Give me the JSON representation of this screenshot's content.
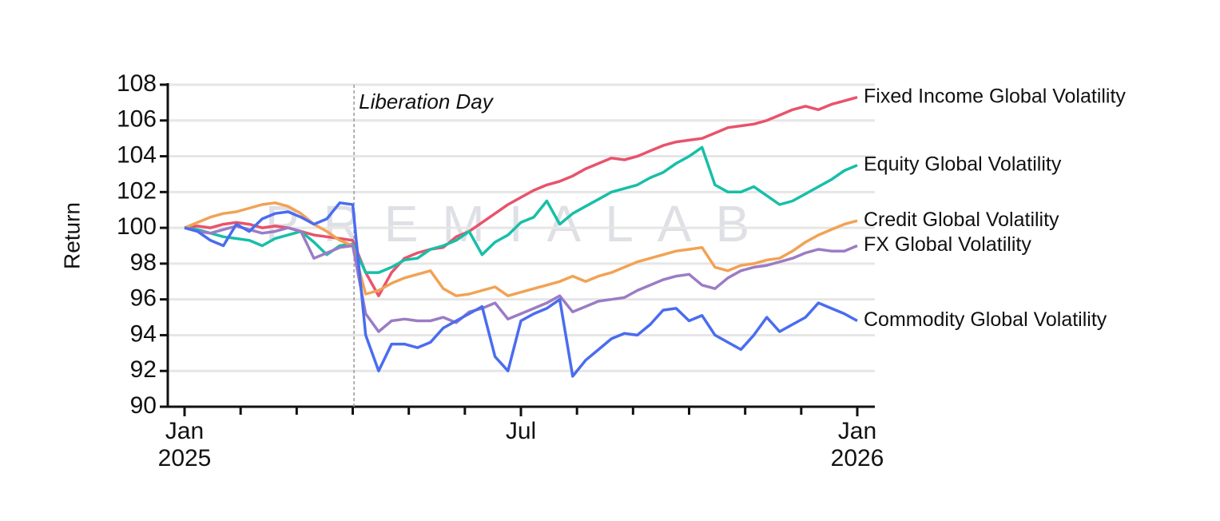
{
  "chart_data": {
    "type": "line",
    "y_label": "Return",
    "watermark": "PREMIALAB",
    "annotation": "Liberation Day",
    "categories": [
      "Jan 2025",
      null,
      null,
      null,
      null,
      null,
      null,
      null,
      null,
      null,
      null,
      null,
      null,
      null,
      null,
      null,
      null,
      null,
      null,
      null,
      null,
      null,
      null,
      null,
      null,
      null,
      "Jul",
      null,
      null,
      null,
      null,
      null,
      null,
      null,
      null,
      null,
      null,
      null,
      null,
      null,
      null,
      null,
      null,
      null,
      null,
      null,
      null,
      null,
      null,
      null,
      null,
      null,
      "Jan 2026"
    ],
    "ylim": [
      90,
      108
    ],
    "yticks": [
      90,
      92,
      94,
      96,
      98,
      100,
      102,
      104,
      106,
      108
    ],
    "grid": true,
    "series": [
      {
        "name": "Fixed Income Global Volatility",
        "color": "#e8536b",
        "values": [
          100,
          100.1,
          100,
          100.2,
          100.3,
          100.2,
          100,
          100.1,
          100,
          99.8,
          99.6,
          99.5,
          99.4,
          99.3,
          97.5,
          96.2,
          97.5,
          98.3,
          98.6,
          98.8,
          98.9,
          99.5,
          99.8,
          100.3,
          100.8,
          101.3,
          101.7,
          102.1,
          102.4,
          102.6,
          102.9,
          103.3,
          103.6,
          103.9,
          103.8,
          104,
          104.3,
          104.6,
          104.8,
          104.9,
          105,
          105.3,
          105.6,
          105.7,
          105.8,
          106,
          106.3,
          106.6,
          106.8,
          106.6,
          106.9,
          107.1,
          107.3
        ]
      },
      {
        "name": "Equity Global Volatility",
        "color": "#17bfa8",
        "values": [
          100,
          99.9,
          99.7,
          99.5,
          99.4,
          99.3,
          99,
          99.4,
          99.6,
          99.8,
          99.2,
          98.5,
          99,
          99.1,
          97.5,
          97.5,
          97.8,
          98.2,
          98.3,
          98.8,
          99,
          99.3,
          99.8,
          98.5,
          99.2,
          99.6,
          100.3,
          100.6,
          101.5,
          100.2,
          100.8,
          101.2,
          101.6,
          102,
          102.2,
          102.4,
          102.8,
          103.1,
          103.6,
          104,
          104.5,
          102.4,
          102,
          102,
          102.3,
          101.8,
          101.3,
          101.5,
          101.9,
          102.3,
          102.7,
          103.2,
          103.5
        ]
      },
      {
        "name": "Credit Global Volatility",
        "color": "#f2a254",
        "values": [
          100,
          100.3,
          100.6,
          100.8,
          100.9,
          101.1,
          101.3,
          101.4,
          101.2,
          100.8,
          100.2,
          99.8,
          99.3,
          99,
          96.3,
          96.5,
          96.9,
          97.2,
          97.4,
          97.6,
          96.6,
          96.2,
          96.3,
          96.5,
          96.7,
          96.2,
          96.4,
          96.6,
          96.8,
          97,
          97.3,
          97,
          97.3,
          97.5,
          97.8,
          98.1,
          98.3,
          98.5,
          98.7,
          98.8,
          98.9,
          97.8,
          97.6,
          97.9,
          98,
          98.2,
          98.3,
          98.7,
          99.2,
          99.6,
          99.9,
          100.2,
          100.4
        ]
      },
      {
        "name": "FX Global Volatility",
        "color": "#9b7cc4",
        "values": [
          100,
          99.8,
          99.7,
          99.9,
          100.1,
          99.9,
          99.7,
          99.8,
          100,
          99.8,
          98.3,
          98.6,
          98.9,
          99,
          95.2,
          94.2,
          94.8,
          94.9,
          94.8,
          94.8,
          95,
          94.7,
          95.3,
          95.5,
          95.8,
          94.9,
          95.2,
          95.5,
          95.8,
          96.2,
          95.3,
          95.6,
          95.9,
          96,
          96.1,
          96.5,
          96.8,
          97.1,
          97.3,
          97.4,
          96.8,
          96.6,
          97.2,
          97.6,
          97.8,
          97.9,
          98.1,
          98.3,
          98.6,
          98.8,
          98.7,
          98.7,
          99
        ]
      },
      {
        "name": "Commodity Global Volatility",
        "color": "#4a6cf0",
        "values": [
          100,
          99.8,
          99.3,
          99,
          100.2,
          99.8,
          100.5,
          100.8,
          100.9,
          100.6,
          100.2,
          100.5,
          101.4,
          101.3,
          94,
          92,
          93.5,
          93.5,
          93.3,
          93.6,
          94.4,
          94.8,
          95.2,
          95.6,
          92.8,
          92,
          94.8,
          95.2,
          95.5,
          96,
          91.7,
          92.6,
          93.2,
          93.8,
          94.1,
          94,
          94.6,
          95.4,
          95.5,
          94.8,
          95.1,
          94,
          93.6,
          93.2,
          94,
          95,
          94.2,
          94.6,
          95,
          95.8,
          95.5,
          95.2,
          94.8
        ]
      }
    ]
  }
}
